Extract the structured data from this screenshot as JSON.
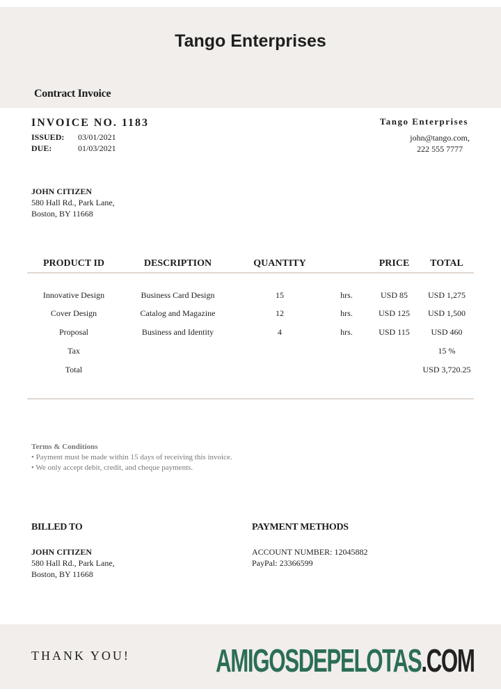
{
  "header": {
    "company": "Tango Enterprises",
    "doc_type": "Contract Invoice"
  },
  "invoice": {
    "number_label": "INVOICE NO. 1183",
    "issued_label": "ISSUED:",
    "issued": "03/01/2021",
    "due_label": "DUE:",
    "due": "01/03/2021"
  },
  "seller": {
    "name": "Tango Enterprises",
    "email": "john@tango.com,",
    "phone": "222 555 7777"
  },
  "client": {
    "name": "JOHN CITIZEN",
    "line1": "580 Hall Rd., Park Lane,",
    "line2": "Boston, BY 11668"
  },
  "table": {
    "headers": [
      "PRODUCT ID",
      "DESCRIPTION",
      "QUANTITY",
      "",
      "PRICE",
      "TOTAL"
    ],
    "rows": [
      [
        "Innovative Design",
        "Business Card Design",
        "15",
        "hrs.",
        "USD 85",
        "USD 1,275"
      ],
      [
        "Cover Design",
        "Catalog and Magazine",
        "12",
        "hrs.",
        "USD 125",
        "USD 1,500"
      ],
      [
        "Proposal",
        "Business and Identity",
        "4",
        "hrs.",
        "USD 115",
        "USD 460"
      ],
      [
        "Tax",
        "",
        "",
        "",
        "",
        "15 %"
      ],
      [
        "Total",
        "",
        "",
        "",
        "",
        "USD 3,720.25"
      ]
    ]
  },
  "terms": {
    "title": "Terms & Conditions",
    "items": [
      "• Payment must be made within 15 days of receiving this invoice.",
      "• We only accept debit, credit, and cheque payments."
    ]
  },
  "billed_to": {
    "title": "BILLED TO",
    "name": "JOHN CITIZEN",
    "line1": "580 Hall Rd., Park Lane,",
    "line2": "Boston, BY 11668"
  },
  "payment": {
    "title": "PAYMENT METHODS",
    "account": "ACCOUNT NUMBER: 12045882",
    "paypal": "PayPal: 23366599"
  },
  "footer": {
    "thanks": "THANK YOU!"
  },
  "watermark": {
    "text": "AMIGOSDEPELOTAS",
    "suffix": ".COM",
    "color": "#2b6e56"
  }
}
